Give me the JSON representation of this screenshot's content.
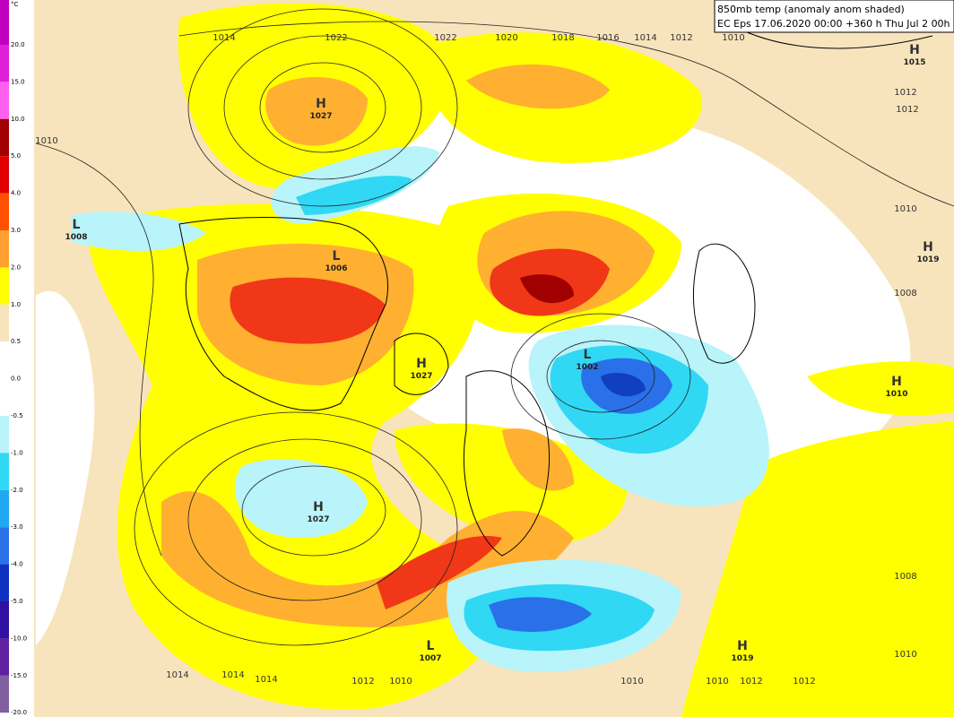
{
  "header": {
    "title": "850mb temp (anomaly anom shaded)",
    "subtitle": "EC Eps 17.06.2020 00:00 +360 h Thu Jul 2 00h"
  },
  "legend": {
    "unit": "°C",
    "labels": [
      "20.0",
      "15.0",
      "10.0",
      "5.0",
      "4.0",
      "3.0",
      "2.0",
      "1.0",
      "0.5",
      "0.0",
      "-0.5",
      "-1.0",
      "-2.0",
      "-3.0",
      "-4.0",
      "-5.0",
      "-10.0",
      "-15.0",
      "-20.0"
    ],
    "colors": [
      "#c000c0",
      "#e020d8",
      "#ff60f0",
      "#a00000",
      "#e00000",
      "#ff5000",
      "#ffa030",
      "#ffff00",
      "#f8e4bc",
      "#ffffff",
      "#ffffff",
      "#b8f4fa",
      "#30d8f4",
      "#20a8f0",
      "#2a70e8",
      "#1030c0",
      "#3010a0",
      "#6020a0",
      "#8060a0"
    ]
  },
  "centers": [
    {
      "symbol": "H",
      "value": "1027"
    },
    {
      "symbol": "L",
      "value": "1008"
    },
    {
      "symbol": "L",
      "value": "1006"
    },
    {
      "symbol": "H",
      "value": "1027"
    },
    {
      "symbol": "L",
      "value": "1002"
    },
    {
      "symbol": "H",
      "value": "1027"
    },
    {
      "symbol": "L",
      "value": "1007"
    },
    {
      "symbol": "H",
      "value": "1019"
    },
    {
      "symbol": "H",
      "value": "1010"
    },
    {
      "symbol": "H",
      "value": "1015"
    },
    {
      "symbol": "H",
      "value": "1019"
    }
  ],
  "isobar_labels": [
    "1014",
    "1022",
    "1022",
    "1020",
    "1018",
    "1016",
    "1014",
    "1012",
    "1010",
    "1010",
    "1014",
    "1014",
    "1014",
    "1012",
    "1010",
    "1010",
    "1010",
    "1012",
    "1012",
    "1010",
    "1008",
    "1012",
    "1012",
    "1010",
    "1008"
  ]
}
